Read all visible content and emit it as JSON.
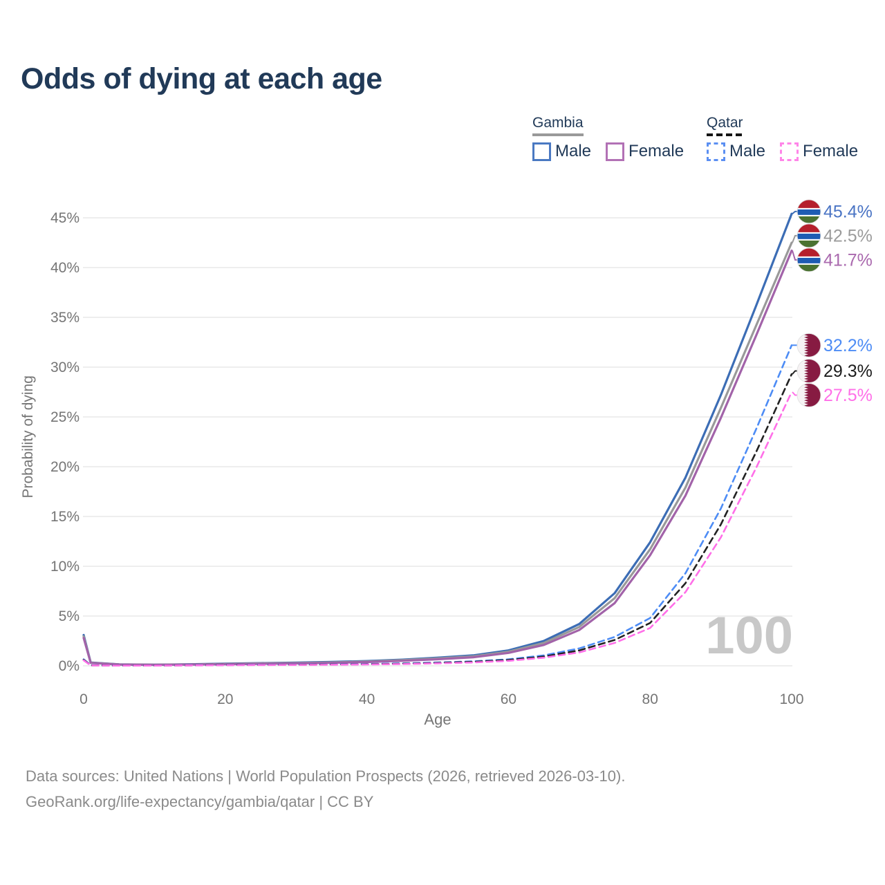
{
  "title": "Odds of dying at each age",
  "legend": {
    "groups": [
      {
        "country": "Gambia",
        "line_style": "solid",
        "rule_color": "#999999",
        "items": [
          {
            "label": "Male",
            "color": "#3c6db5"
          },
          {
            "label": "Female",
            "color": "#a86cb0"
          }
        ]
      },
      {
        "country": "Qatar",
        "line_style": "dashed",
        "rule_color": "#151515",
        "items": [
          {
            "label": "Male",
            "color": "#5b8ff2"
          },
          {
            "label": "Female",
            "color": "#ff7ee7"
          }
        ]
      }
    ]
  },
  "watermark": "100",
  "footer": {
    "line1": "Data sources: United Nations | World Population Prospects (2026, retrieved 2026-03-10).",
    "line2": "GeoRank.org/life-expectancy/gambia/qatar | CC BY"
  },
  "chart_data": {
    "type": "line",
    "title": "Odds of dying at each age",
    "xlabel": "Age",
    "ylabel": "Probability of dying",
    "x_ticks": [
      0,
      20,
      40,
      60,
      80,
      100
    ],
    "y_ticks": [
      "0%",
      "5%",
      "10%",
      "15%",
      "20%",
      "25%",
      "30%",
      "35%",
      "40%",
      "45%"
    ],
    "y_tick_values": [
      0,
      5,
      10,
      15,
      20,
      25,
      30,
      35,
      40,
      45
    ],
    "xlim": [
      0,
      100
    ],
    "ylim_pct": [
      0,
      46.5
    ],
    "grid": true,
    "legend_position": "top-right",
    "ages": [
      0,
      1,
      5,
      10,
      15,
      20,
      25,
      30,
      35,
      40,
      45,
      50,
      55,
      60,
      65,
      70,
      75,
      80,
      85,
      90,
      95,
      100
    ],
    "series": [
      {
        "name": "Gambia Male",
        "country": "Gambia",
        "sex": "male",
        "style": "solid",
        "color": "#3c6db5",
        "flag": "gambia",
        "end_label": "45.4%",
        "end_value": 45.4,
        "label_color": "#4a74c4",
        "values": [
          3.1,
          0.33,
          0.15,
          0.12,
          0.16,
          0.22,
          0.27,
          0.32,
          0.39,
          0.48,
          0.62,
          0.82,
          1.05,
          1.55,
          2.5,
          4.2,
          7.3,
          12.4,
          18.9,
          27.2,
          36.2,
          45.4
        ]
      },
      {
        "name": "Gambia",
        "country": "Gambia",
        "sex": "all",
        "style": "solid",
        "color": "#999999",
        "flag": "gambia",
        "end_label": "42.5%",
        "end_value": 42.5,
        "label_color": "#9b9b9b",
        "values": [
          2.95,
          0.31,
          0.14,
          0.11,
          0.14,
          0.19,
          0.24,
          0.28,
          0.34,
          0.43,
          0.56,
          0.74,
          0.95,
          1.42,
          2.3,
          3.9,
          6.8,
          11.7,
          17.9,
          25.9,
          34.2,
          42.5
        ]
      },
      {
        "name": "Gambia Female",
        "country": "Gambia",
        "sex": "female",
        "style": "solid",
        "color": "#a263a9",
        "flag": "gambia",
        "end_label": "41.7%",
        "end_value": 41.7,
        "label_color": "#aa69ae",
        "values": [
          2.8,
          0.29,
          0.13,
          0.1,
          0.13,
          0.16,
          0.2,
          0.24,
          0.3,
          0.38,
          0.5,
          0.66,
          0.86,
          1.3,
          2.1,
          3.6,
          6.3,
          11.1,
          17.1,
          24.9,
          33.2,
          41.7
        ]
      },
      {
        "name": "Qatar Male",
        "country": "Qatar",
        "sex": "male",
        "style": "dashed",
        "color": "#4d8cf5",
        "flag": "qatar",
        "end_label": "32.2%",
        "end_value": 32.2,
        "label_color": "#4d8cf5",
        "values": [
          0.65,
          0.06,
          0.03,
          0.03,
          0.06,
          0.1,
          0.12,
          0.13,
          0.15,
          0.19,
          0.25,
          0.33,
          0.45,
          0.65,
          1.05,
          1.75,
          2.9,
          4.8,
          9.3,
          15.8,
          23.8,
          32.2
        ]
      },
      {
        "name": "Qatar",
        "country": "Qatar",
        "sex": "all",
        "style": "dashed",
        "color": "#222222",
        "flag": "qatar",
        "end_label": "29.3%",
        "end_value": 29.3,
        "label_color": "#1c1c1c",
        "values": [
          0.6,
          0.05,
          0.03,
          0.025,
          0.05,
          0.08,
          0.1,
          0.11,
          0.13,
          0.16,
          0.21,
          0.29,
          0.4,
          0.58,
          0.93,
          1.55,
          2.6,
          4.3,
          8.3,
          14.2,
          21.5,
          29.3
        ]
      },
      {
        "name": "Qatar Female",
        "country": "Qatar",
        "sex": "female",
        "style": "dashed",
        "color": "#ff6fe8",
        "flag": "qatar",
        "end_label": "27.5%",
        "end_value": 27.5,
        "label_color": "#ff6fe8",
        "values": [
          0.55,
          0.045,
          0.02,
          0.02,
          0.04,
          0.06,
          0.08,
          0.09,
          0.11,
          0.14,
          0.18,
          0.25,
          0.34,
          0.5,
          0.82,
          1.35,
          2.3,
          3.8,
          7.4,
          12.9,
          19.9,
          27.5
        ]
      }
    ],
    "flag_colors": {
      "gambia": {
        "red": "#b5202c",
        "blue": "#1e5cb3",
        "green": "#4a7231",
        "white": "#ffffff"
      },
      "qatar": {
        "maroon": "#871b42",
        "white": "#f6f3f4"
      }
    }
  }
}
